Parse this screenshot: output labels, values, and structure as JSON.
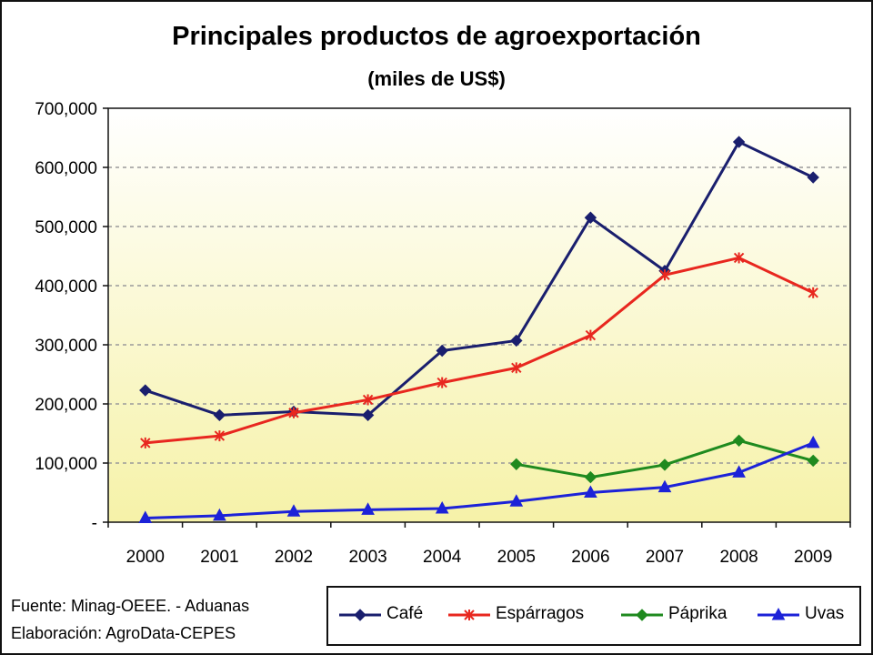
{
  "chart_data": {
    "type": "line",
    "title": "Principales productos de agroexportación",
    "subtitle": "(miles de US$)",
    "x": [
      "2000",
      "2001",
      "2002",
      "2003",
      "2004",
      "2005",
      "2006",
      "2007",
      "2008",
      "2009"
    ],
    "ylim": [
      0,
      700000
    ],
    "yticks": [
      "-",
      "100,000",
      "200,000",
      "300,000",
      "400,000",
      "500,000",
      "600,000",
      "700,000"
    ],
    "grid": true,
    "legend_position": "bottom",
    "series": [
      {
        "name": "Café",
        "color": "#1a1f6e",
        "marker": "diamond",
        "values": [
          223000,
          181000,
          187000,
          181000,
          290000,
          307000,
          515000,
          425000,
          643000,
          583000
        ]
      },
      {
        "name": "Espárragos",
        "color": "#e8271f",
        "marker": "asterisk",
        "values": [
          134000,
          146000,
          185000,
          207000,
          236000,
          261000,
          316000,
          418000,
          447000,
          388000
        ]
      },
      {
        "name": "Páprika",
        "color": "#1f8a1f",
        "marker": "diamond",
        "values": [
          null,
          null,
          null,
          null,
          null,
          98000,
          76000,
          97000,
          138000,
          104000
        ]
      },
      {
        "name": "Uvas",
        "color": "#1c22d8",
        "marker": "triangle",
        "values": [
          7000,
          11000,
          18000,
          21000,
          23000,
          35000,
          50000,
          59000,
          84000,
          134000
        ]
      }
    ]
  },
  "notes": {
    "source": "Fuente: Minag-OEEE. - Aduanas",
    "elaboration": "Elaboración: AgroData-CEPES"
  }
}
